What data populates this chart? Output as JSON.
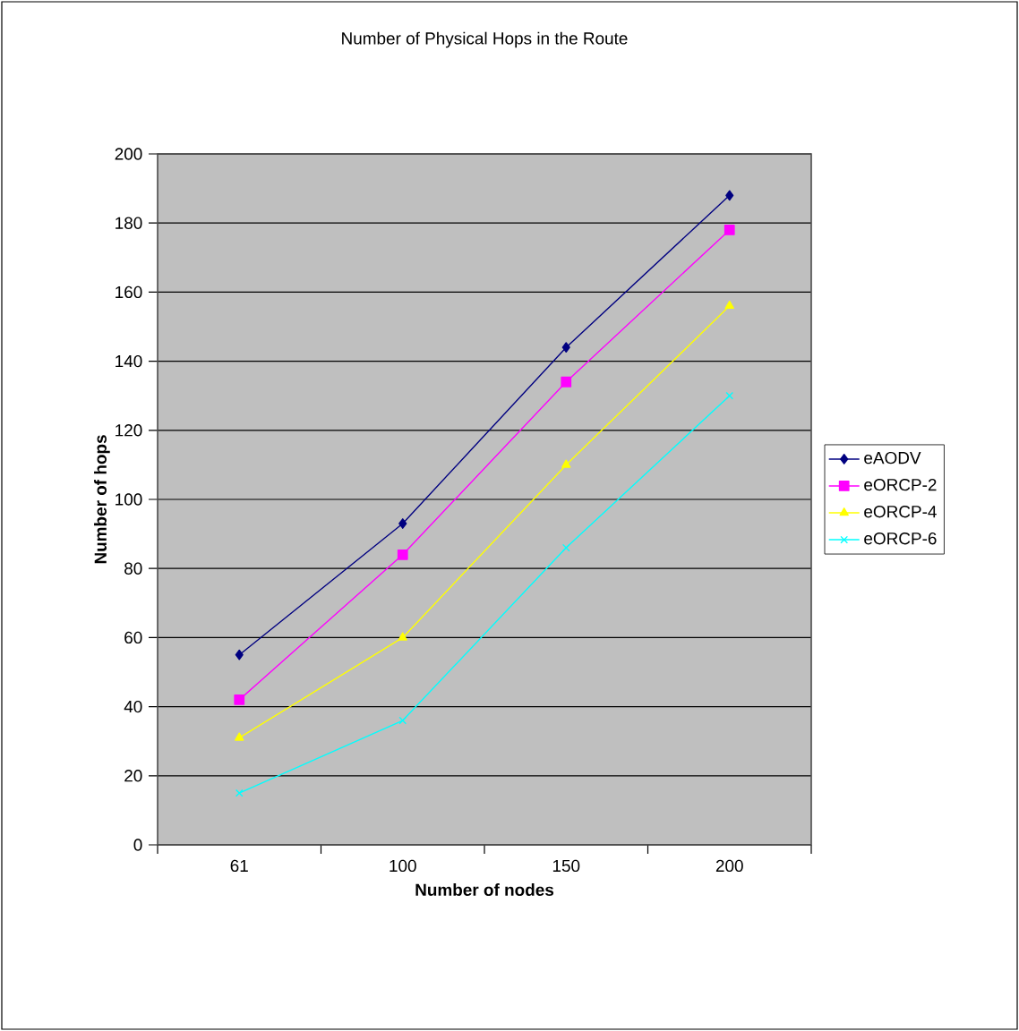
{
  "chart_data": {
    "type": "line",
    "title": "Number of Physical Hops in the Route",
    "xlabel": "Number of nodes",
    "ylabel": "Number of hops",
    "categories": [
      "61",
      "100",
      "150",
      "200"
    ],
    "series": [
      {
        "name": "eAODV",
        "color": "#000080",
        "marker": "diamond",
        "values": [
          55,
          93,
          144,
          188
        ]
      },
      {
        "name": "eORCP-2",
        "color": "#ff00ff",
        "marker": "square",
        "values": [
          42,
          84,
          134,
          178
        ]
      },
      {
        "name": "eORCP-4",
        "color": "#ffff00",
        "marker": "triangle",
        "values": [
          31,
          60,
          110,
          156
        ]
      },
      {
        "name": "eORCP-6",
        "color": "#00ffff",
        "marker": "cross",
        "values": [
          15,
          36,
          86,
          130
        ]
      }
    ],
    "ylim": [
      0,
      200
    ],
    "yticks": [
      0,
      20,
      40,
      60,
      80,
      100,
      120,
      140,
      160,
      180,
      200
    ],
    "grid": "y",
    "legend": "right"
  }
}
